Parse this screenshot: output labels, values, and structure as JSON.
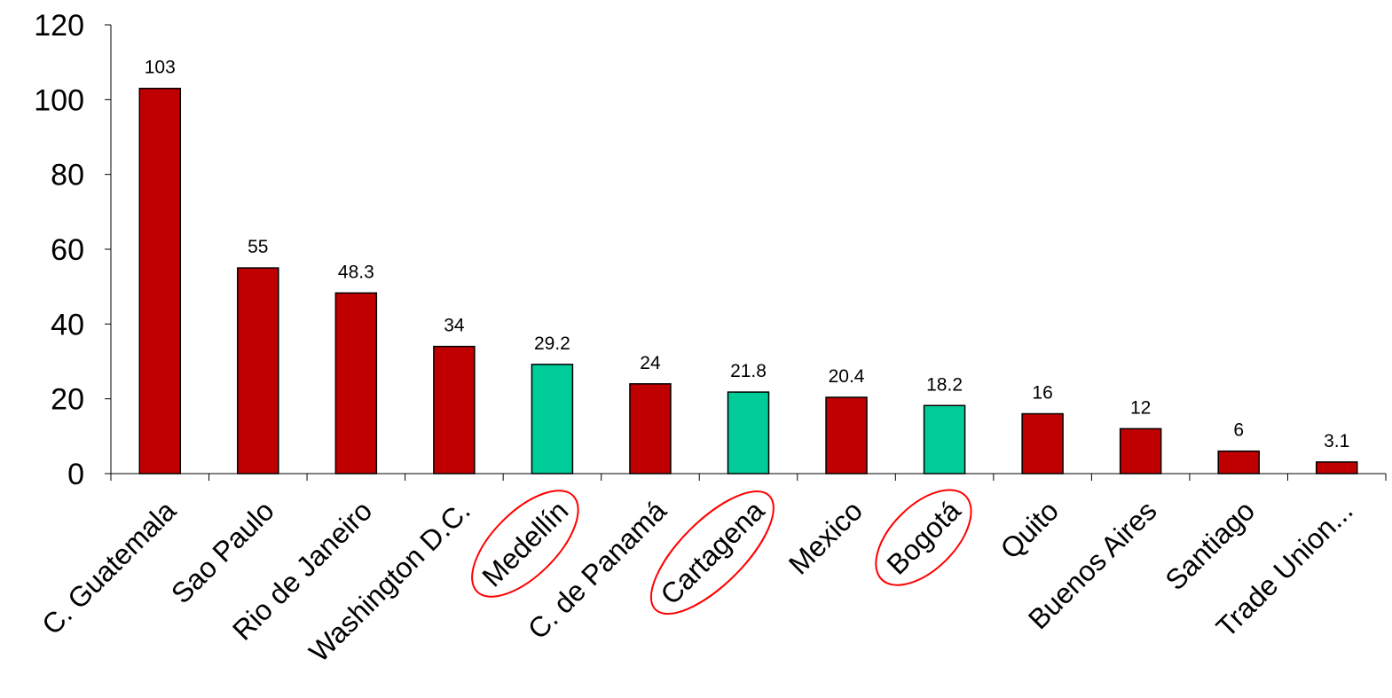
{
  "chart_data": {
    "type": "bar",
    "title": "",
    "xlabel": "",
    "ylabel": "",
    "ylim": [
      0,
      120
    ],
    "yticks": [
      0,
      20,
      40,
      60,
      80,
      100,
      120
    ],
    "grid": false,
    "legend": "none",
    "categories": [
      "C. Guatemala",
      "Sao Paulo",
      "Rio de Janeiro",
      "Washington D.C.",
      "Medellín",
      "C. de Panamá",
      "Cartagena",
      "Mexico",
      "Bogotá",
      "Quito",
      "Buenos Aires",
      "Santiago",
      "Trade Union..."
    ],
    "values": [
      103,
      55,
      48.3,
      34,
      29.2,
      24,
      21.8,
      20.4,
      18.2,
      16,
      12,
      6,
      3.1
    ],
    "data_labels": [
      "103",
      "55",
      "48.3",
      "34",
      "29.2",
      "24",
      "21.8",
      "20.4",
      "18.2",
      "16",
      "12",
      "6",
      "3.1"
    ],
    "highlighted": [
      "Medellín",
      "Cartagena",
      "Bogotá"
    ],
    "colors": {
      "default_bar": "#c00000",
      "highlight_bar": "#00cc99",
      "highlight_circle": "#ff0000",
      "axis": "#000000"
    }
  }
}
